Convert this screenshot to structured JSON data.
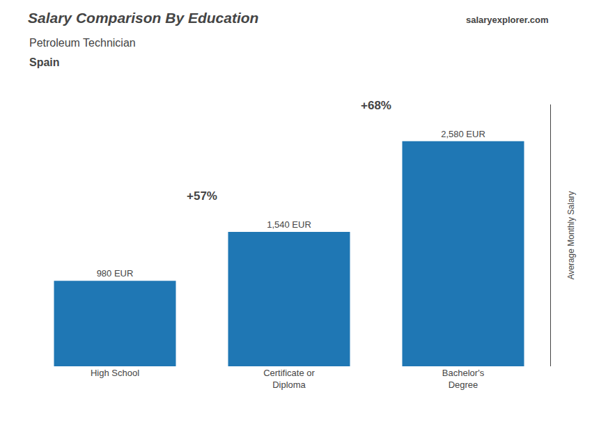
{
  "chart_data": {
    "type": "bar",
    "title": "Salary Comparison By Education",
    "subtitle": "Petroleum Technician",
    "annotations": [
      "Spain",
      "salaryexplorer.com"
    ],
    "pct_labels": [
      "+57%",
      "+68%"
    ],
    "ylabel": "Average Monthly Salary",
    "categories": [
      "High School",
      "Certificate or\nDiploma",
      "Bachelor's\nDegree"
    ],
    "values": [
      980,
      1540,
      2580
    ],
    "value_labels": [
      "980 EUR",
      "1,540 EUR",
      "2,580 EUR"
    ],
    "data_labels": true,
    "ylim": [
      0,
      3000
    ],
    "tick_labels": "x",
    "grid": false
  }
}
